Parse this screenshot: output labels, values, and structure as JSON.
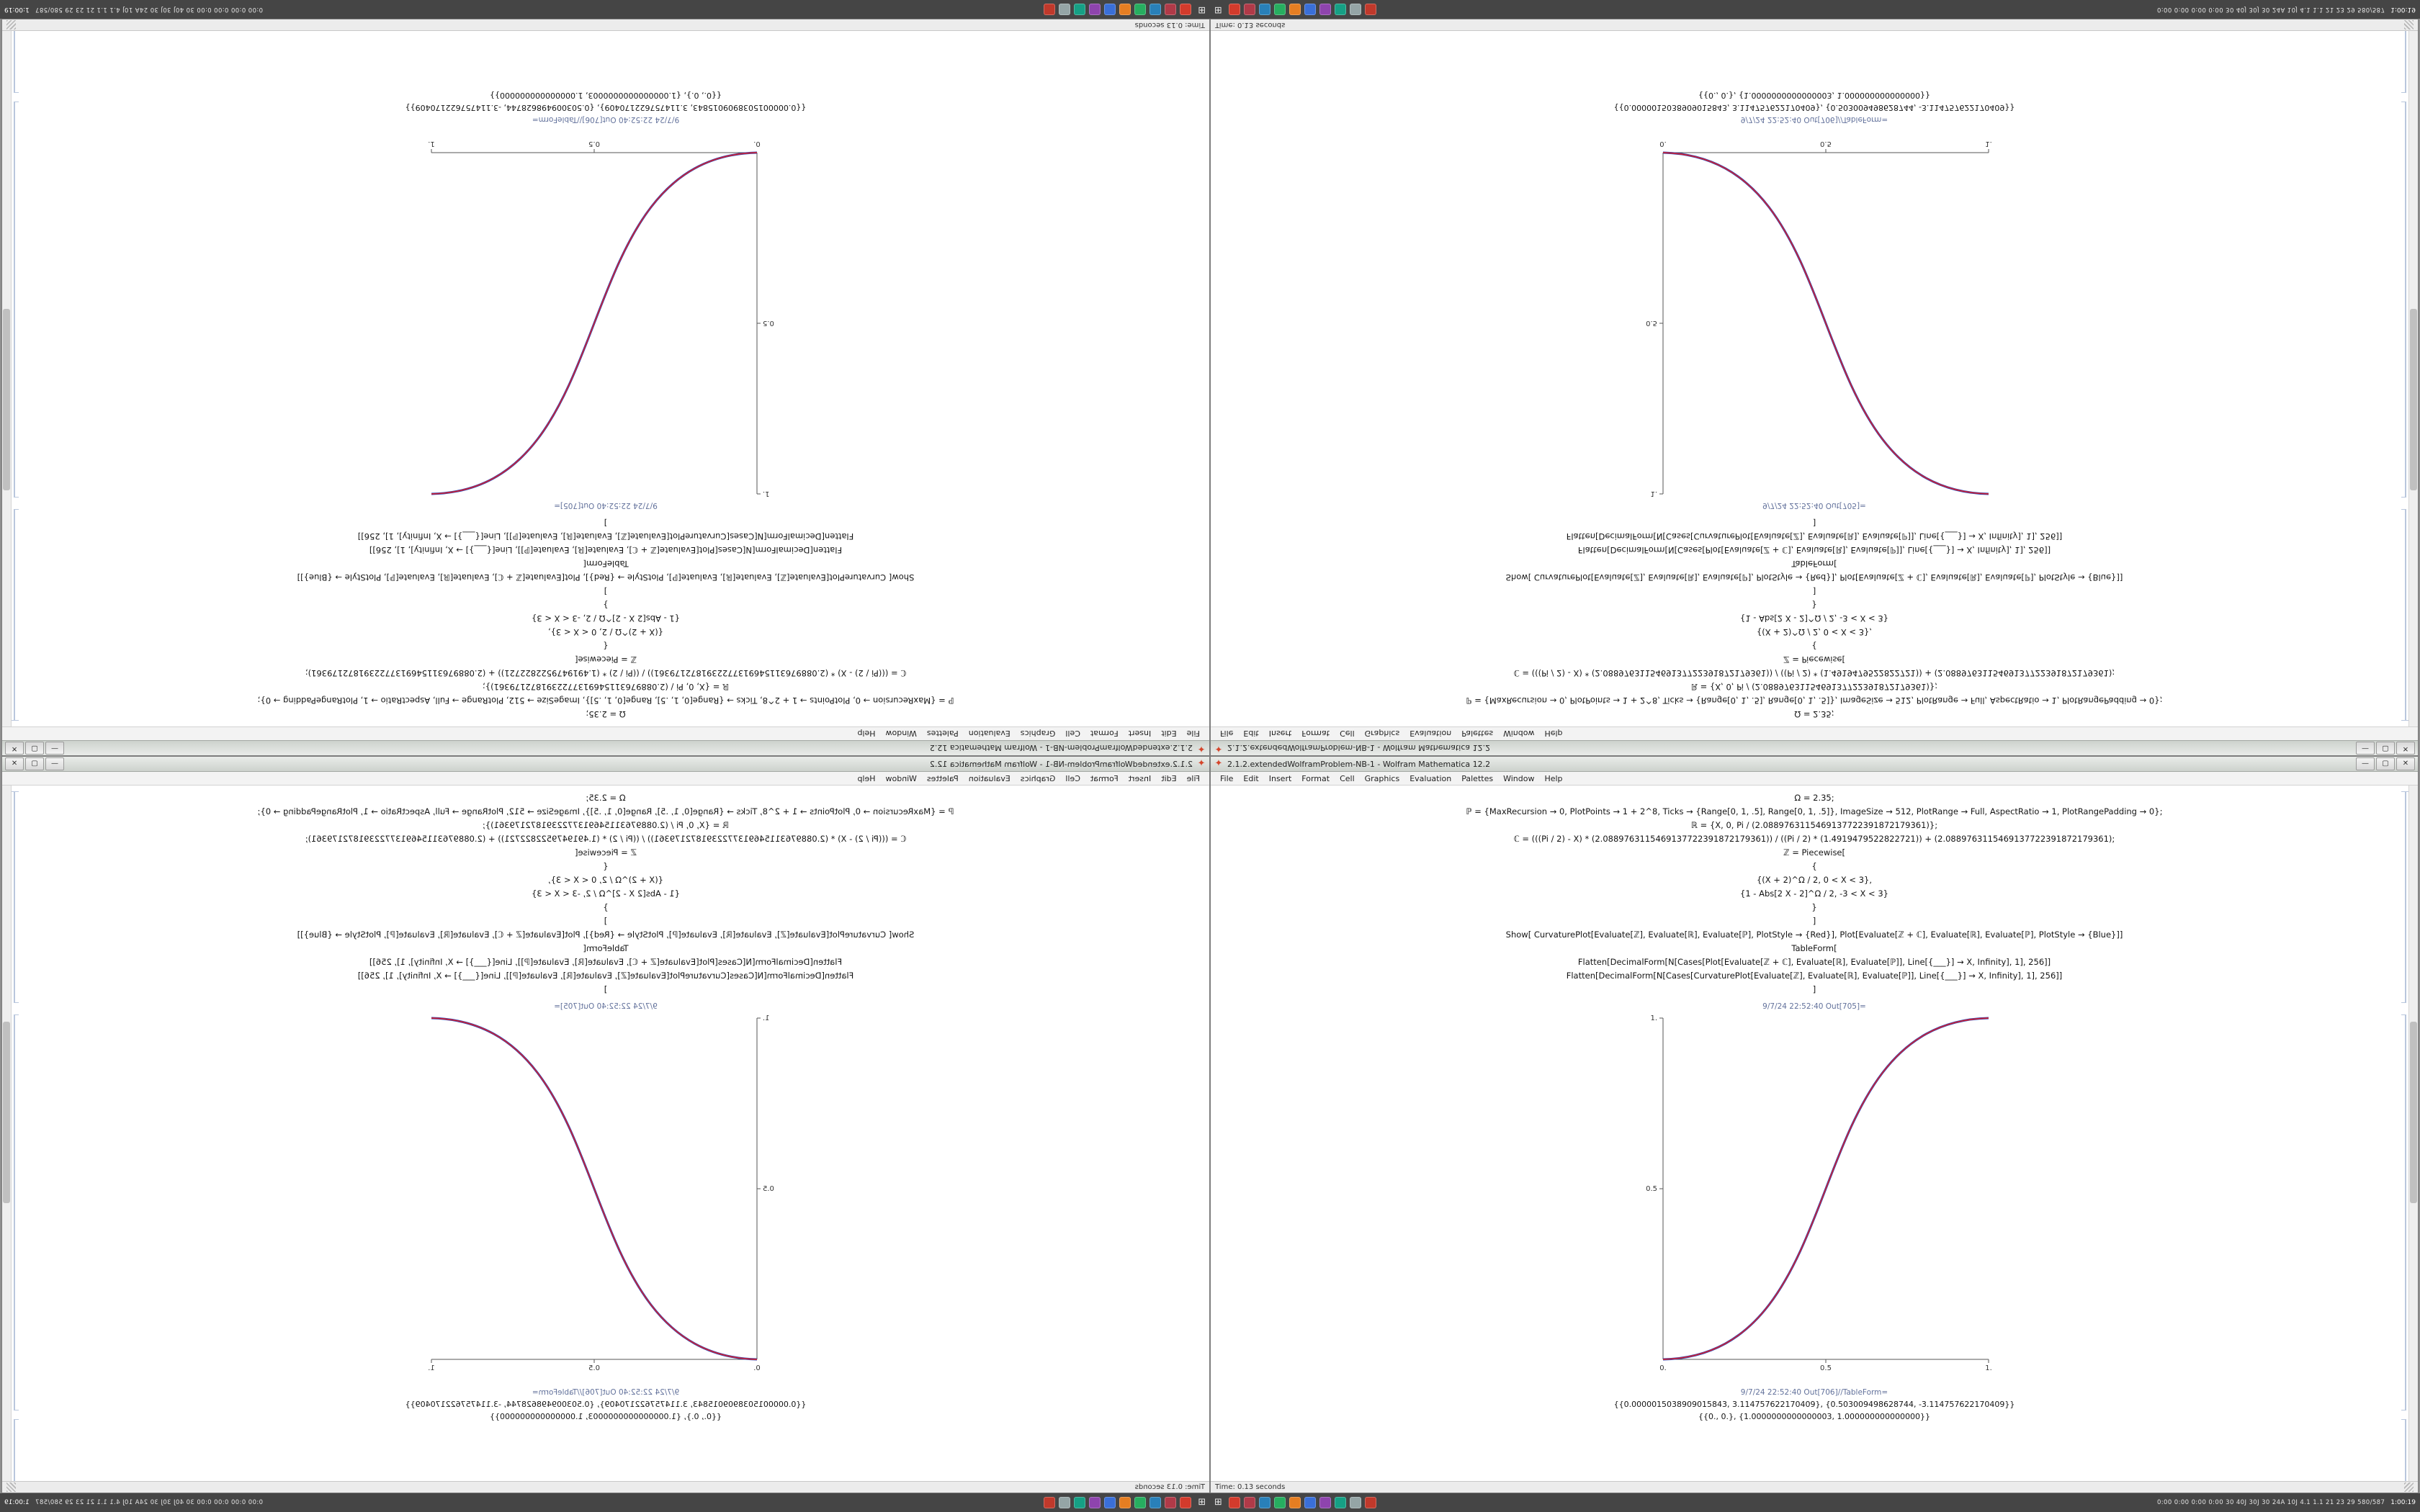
{
  "window": {
    "title": "2.1.2.extendedWolframProblem-NB-1 - Wolfram Mathematica 12.2",
    "app_icon": "mathematica-spikey-icon",
    "controls": {
      "minimize": "—",
      "maximize": "▢",
      "close": "✕"
    },
    "menu": [
      "File",
      "Edit",
      "Insert",
      "Format",
      "Cell",
      "Graphics",
      "Evaluation",
      "Palettes",
      "Window",
      "Help"
    ],
    "status": {
      "left": "Time: 0.13 seconds"
    },
    "notebook": {
      "code_lines": [
        "Ω = 2.35;",
        "ℙ = {MaxRecursion → 0, PlotPoints → 1 + 2^8, Ticks → {Range[0, 1, .5], Range[0, 1, .5]}, ImageSize → 512, PlotRange → Full, AspectRatio → 1, PlotRangePadding → 0};",
        "ℝ = {X, 0, Pi / (2.0889763115469137722391872179361)};",
        "ℂ = (((Pi / 2) - X) * (2.0889763115469137722391872179361)) / ((Pi / 2) * (1.4919479522822721)) + (2.0889763115469137722391872179361);",
        "ℤ = Piecewise[",
        "{",
        "{(X + 2)^Ω / 2, 0 < X < 3},",
        "{1 - Abs[2 X - 2]^Ω / 2, -3 < X < 3}",
        "}",
        "]",
        "Show[  CurvaturePlot[Evaluate[ℤ], Evaluate[ℝ], Evaluate[ℙ], PlotStyle → {Red}],  Plot[Evaluate[ℤ + ℂ], Evaluate[ℝ], Evaluate[ℙ], PlotStyle → {Blue}]]",
        "TableForm[",
        "Flatten[DecimalForm[N[Cases[Plot[Evaluate[ℤ + ℂ], Evaluate[ℝ], Evaluate[ℙ]], Line[{___}] → X, Infinity], 1], 256]]",
        "Flatten[DecimalForm[N[Cases[CurvaturePlot[Evaluate[ℤ], Evaluate[ℝ], Evaluate[ℙ]], Line[{___}] → X, Infinity], 1], 256]]",
        "]"
      ],
      "out1_label": "9/7/24 22:52:40 Out[705]=",
      "out2_label": "9/7/24 22:52:40 Out[706]//TableForm=",
      "table_rows": [
        "{{0.0000015038909015843, 3.114757622170409}, {0.503009498628744, -3.114757622170409}}",
        "{{0., 0.}, {1.0000000000000003, 1.000000000000000}}"
      ]
    }
  },
  "plot": {
    "xticks": [
      "0.",
      "0.5",
      "1."
    ],
    "yticks": [
      "0.5",
      "1."
    ],
    "colors": {
      "red_curve": "#cc2233",
      "blue_curve": "#2244bb"
    }
  },
  "taskbar": {
    "start_glyph": "⊞",
    "icons": [
      {
        "name": "mathematica-taskbar-icon",
        "color": "#d33b2c"
      },
      {
        "name": "document-app-icon",
        "color": "#b03a48"
      },
      {
        "name": "browser-app-icon",
        "color": "#2980b9"
      },
      {
        "name": "green-app-icon",
        "color": "#27ae60"
      },
      {
        "name": "orange-app-icon",
        "color": "#e67e22"
      },
      {
        "name": "blue-app-icon",
        "color": "#3a6fd8"
      },
      {
        "name": "purple-app-icon",
        "color": "#8e44ad"
      },
      {
        "name": "teal-app-icon",
        "color": "#16a085"
      },
      {
        "name": "gray-app-icon",
        "color": "#95a5a6"
      },
      {
        "name": "red-app-icon",
        "color": "#c0392b"
      }
    ],
    "tray_text": "0:00  0:00  0:00  0:00  30  40J  30J  30  24A  10J  4.1  1.1  21  23  29  580/587",
    "tray_time": "1:00:19"
  },
  "chart_data": {
    "type": "line",
    "title": "",
    "xlabel": "",
    "ylabel": "",
    "xlim": [
      0,
      1
    ],
    "ylim": [
      0,
      1
    ],
    "xticks": [
      0,
      0.5,
      1
    ],
    "yticks": [
      0,
      0.5,
      1
    ],
    "grid": false,
    "legend": "none",
    "x": [
      0,
      0.1,
      0.2,
      0.3,
      0.4,
      0.5,
      0.6,
      0.7,
      0.8,
      0.9,
      1.0
    ],
    "series": [
      {
        "name": "CurvaturePlot (red)",
        "color": "#cc2233",
        "values": [
          0,
          0.009,
          0.058,
          0.163,
          0.317,
          0.5,
          0.683,
          0.837,
          0.942,
          0.991,
          1.0
        ]
      },
      {
        "name": "Plot (blue)",
        "color": "#2244bb",
        "values": [
          0,
          0.009,
          0.058,
          0.163,
          0.317,
          0.5,
          0.683,
          0.837,
          0.942,
          0.991,
          1.0
        ]
      }
    ],
    "note": "Smooth sigmoid curve from (0,0) to (1,1); red and blue curves coincide and appear purple. The same notebook is shown four times: normal (bottom-right), rotated 180° (top-left), flipped vertically (top-right), flipped horizontally (bottom-left)."
  }
}
